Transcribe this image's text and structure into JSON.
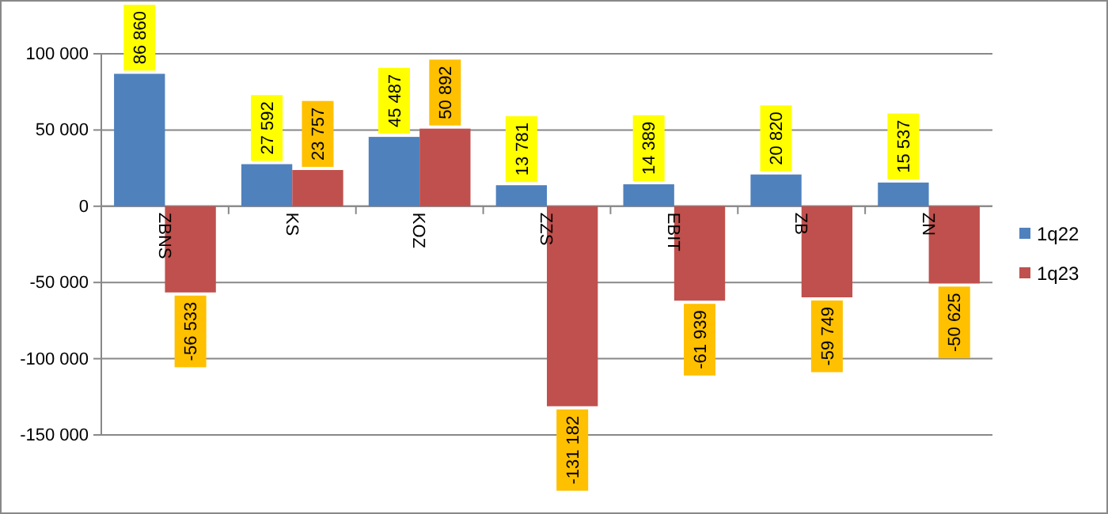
{
  "chart_data": {
    "type": "bar",
    "categories": [
      "ZBNS",
      "KS",
      "KOZ",
      "ZZS",
      "EBIT",
      "ZB",
      "ZN"
    ],
    "series": [
      {
        "name": "1q22",
        "color": "#4f81bd",
        "values": [
          86860,
          27592,
          45487,
          13781,
          14389,
          20820,
          15537
        ],
        "value_labels": [
          "86 860",
          "27 592",
          "45 487",
          "13 781",
          "14 389",
          "20 820",
          "15 537"
        ]
      },
      {
        "name": "1q23",
        "color": "#c0504d",
        "values": [
          -56533,
          23757,
          50892,
          -131182,
          -61939,
          -59749,
          -50625
        ],
        "value_labels": [
          "-56 533",
          "23 757",
          "50 892",
          "-131 182",
          "-61 939",
          "-59 749",
          "-50 625"
        ]
      }
    ],
    "ylim": [
      -150000,
      100000
    ],
    "yticks": [
      {
        "value": -150000,
        "label": "-150 000"
      },
      {
        "value": -100000,
        "label": "-100 000"
      },
      {
        "value": -50000,
        "label": "-50 000"
      },
      0,
      {
        "value": 50000,
        "label": "50 000"
      },
      {
        "value": 100000,
        "label": "100 000"
      }
    ],
    "grid": "y",
    "legend": "right"
  }
}
